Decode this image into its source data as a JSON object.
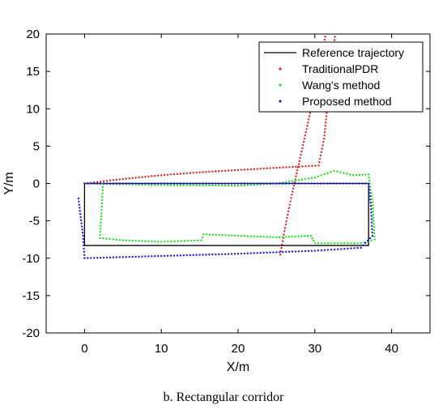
{
  "chart_data": {
    "type": "scatter",
    "xlabel": "X/m",
    "ylabel": "Y/m",
    "xlim": [
      -5,
      45
    ],
    "ylim": [
      -20,
      20
    ],
    "xticks": [
      0,
      10,
      20,
      30,
      40
    ],
    "yticks": [
      -20,
      -15,
      -10,
      -5,
      0,
      5,
      10,
      15,
      20
    ],
    "grid": false,
    "legend_position": "top-right",
    "series": [
      {
        "name": "Reference trajectory",
        "style": "line",
        "color": "#000000",
        "points": [
          [
            0,
            0
          ],
          [
            37,
            0
          ],
          [
            37,
            -8.3
          ],
          [
            0,
            -8.3
          ],
          [
            0,
            0
          ]
        ]
      },
      {
        "name": "TraditionalPDR",
        "style": "dots",
        "color": "#e8201c",
        "points": [
          [
            0,
            0
          ],
          [
            5,
            0.6
          ],
          [
            10,
            1.1
          ],
          [
            15,
            1.5
          ],
          [
            20,
            1.8
          ],
          [
            25,
            2.1
          ],
          [
            30.5,
            2.4
          ],
          [
            31.2,
            6
          ],
          [
            31.8,
            12
          ],
          [
            32.3,
            17
          ],
          [
            32.7,
            20.5
          ],
          [
            31.5,
            20.5
          ],
          [
            30.5,
            15
          ],
          [
            29.3,
            9
          ],
          [
            28.0,
            3
          ],
          [
            27.0,
            -1.5
          ],
          [
            26.2,
            -5.5
          ],
          [
            25.5,
            -9.5
          ]
        ]
      },
      {
        "name": "Wang's method",
        "style": "dots",
        "color": "#19e619",
        "points": [
          [
            0,
            0
          ],
          [
            10,
            -0.2
          ],
          [
            20,
            -0.3
          ],
          [
            25,
            0
          ],
          [
            30,
            0.8
          ],
          [
            32.5,
            1.7
          ],
          [
            35,
            1.1
          ],
          [
            37,
            1.2
          ],
          [
            37.5,
            -2.5
          ],
          [
            37.8,
            -7.5
          ],
          [
            36,
            -8
          ],
          [
            30,
            -8
          ],
          [
            29.5,
            -7
          ],
          [
            25,
            -7.2
          ],
          [
            20,
            -7
          ],
          [
            15.5,
            -6.8
          ],
          [
            15.2,
            -7.6
          ],
          [
            10,
            -7.8
          ],
          [
            5,
            -7.6
          ],
          [
            2,
            -7.3
          ],
          [
            2.2,
            -4
          ],
          [
            2.4,
            0
          ]
        ]
      },
      {
        "name": "Proposed method",
        "style": "dots",
        "color": "#1a1ae6",
        "points": [
          [
            0,
            0
          ],
          [
            10,
            0
          ],
          [
            20,
            0
          ],
          [
            30,
            0
          ],
          [
            37,
            0
          ],
          [
            37.3,
            -3
          ],
          [
            37.5,
            -7
          ],
          [
            36,
            -8.6
          ],
          [
            30,
            -9
          ],
          [
            20,
            -9.4
          ],
          [
            10,
            -9.7
          ],
          [
            0,
            -10
          ],
          [
            -0.2,
            -7
          ],
          [
            -0.5,
            -4.5
          ],
          [
            -0.8,
            -2
          ]
        ]
      }
    ]
  },
  "caption": "b. Rectangular corridor"
}
